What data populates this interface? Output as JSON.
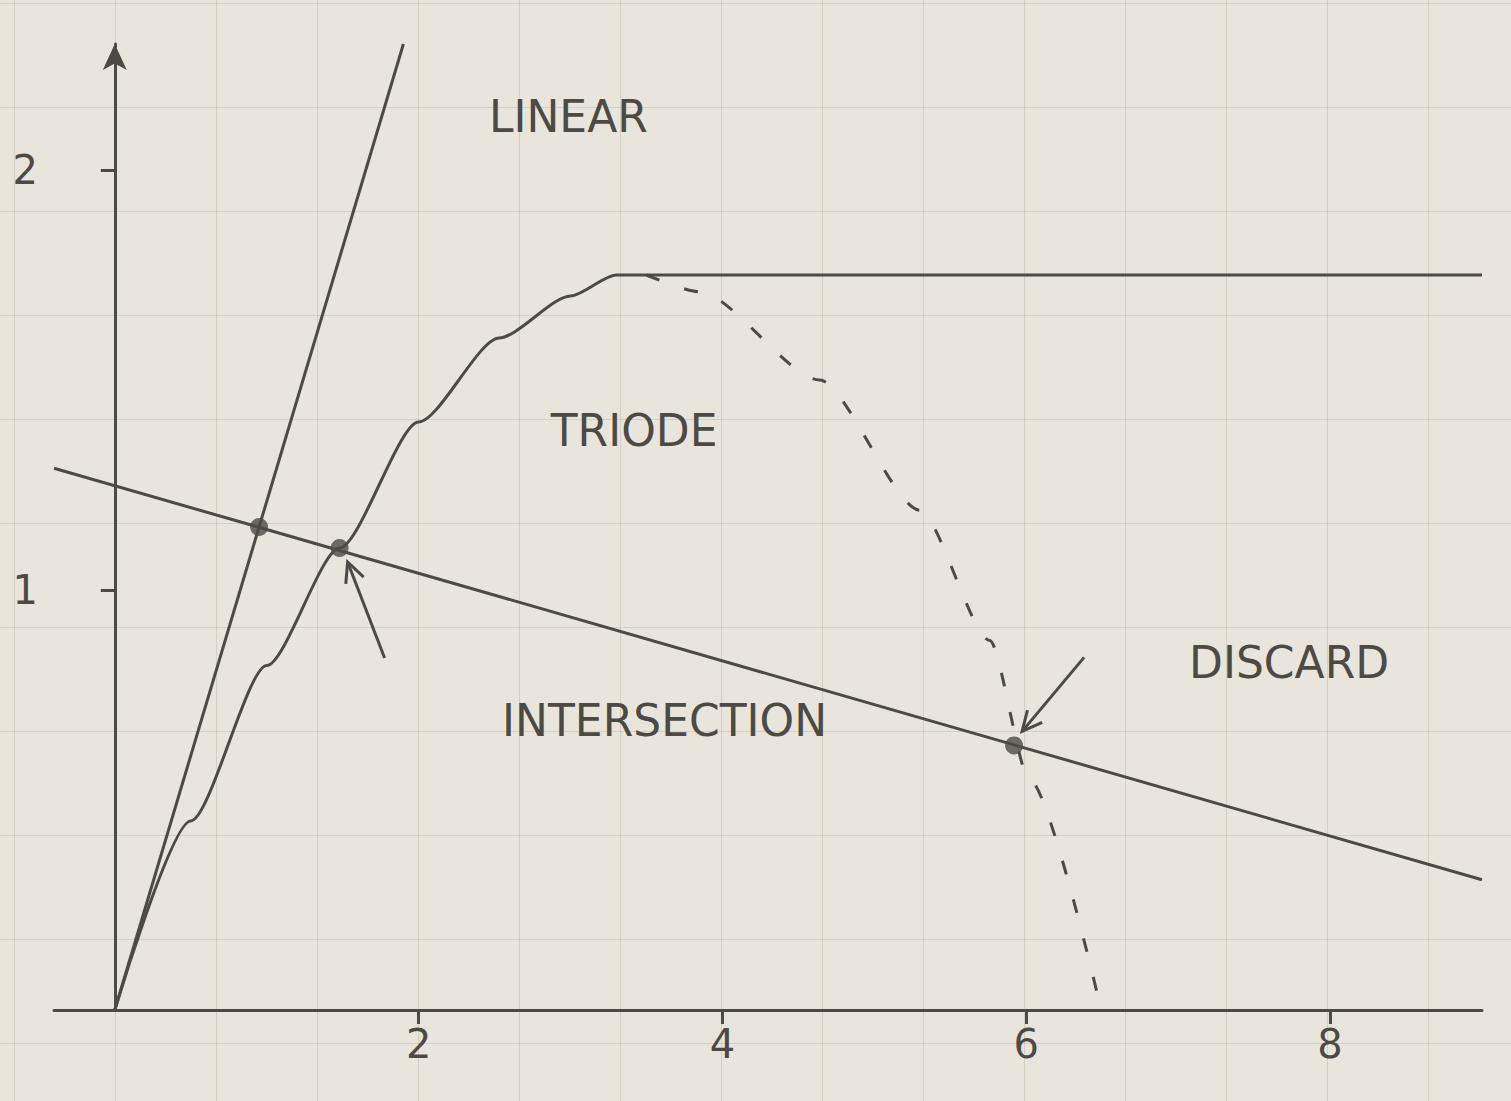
{
  "chart_data": {
    "type": "line",
    "xlim": [
      -0.4,
      9
    ],
    "ylim": [
      0,
      2.3
    ],
    "xticks": [
      2,
      4,
      6,
      8
    ],
    "yticks": [
      1,
      2
    ],
    "grid": false,
    "color": "#4d4a45",
    "series": [
      {
        "name": "LINEAR",
        "type": "line",
        "line_style": "solid",
        "x": [
          0,
          1.9
        ],
        "values": [
          0,
          2.3
        ]
      },
      {
        "name": "TRIODE",
        "type": "line",
        "line_style": "solid",
        "x": [
          0,
          0.5,
          1.0,
          1.48,
          2.0,
          2.53,
          3.0,
          3.3,
          9
        ],
        "values": [
          0,
          0.45,
          0.82,
          1.1,
          1.4,
          1.6,
          1.7,
          1.75,
          1.75
        ]
      },
      {
        "type": "line",
        "line_style": "solid",
        "x": [
          -0.4,
          9
        ],
        "values": [
          1.29,
          0.31
        ]
      },
      {
        "type": "line",
        "line_style": "dashed",
        "x": [
          3.5,
          3.85,
          4.64,
          5.3,
          5.76,
          6.02,
          6.48
        ],
        "values": [
          1.75,
          1.71,
          1.5,
          1.19,
          0.88,
          0.55,
          0.02
        ]
      },
      {
        "type": "scatter",
        "marker": "circle",
        "x": [
          0.95,
          1.48,
          5.92
        ],
        "values": [
          1.15,
          1.1,
          0.63
        ]
      }
    ],
    "annotations": [
      {
        "text": "INTERSECTION",
        "x": 1.48,
        "y": 1.1
      },
      {
        "text": "DISCARD",
        "x": 5.92,
        "y": 0.63
      }
    ]
  }
}
